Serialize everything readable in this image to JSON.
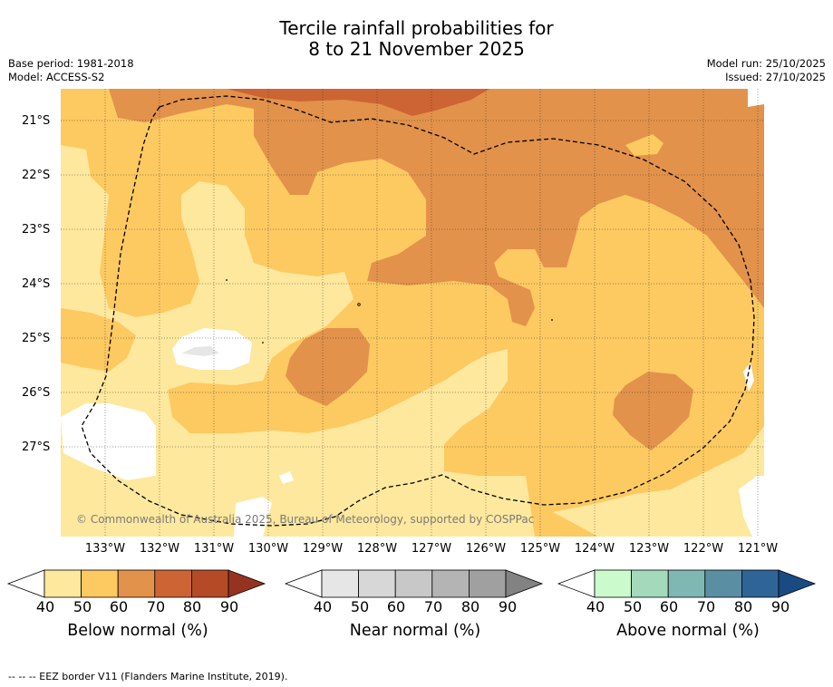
{
  "title": {
    "line1": "Tercile rainfall probabilities for",
    "line2": "8 to 21 November 2025"
  },
  "meta_left": {
    "base_period": "Base period: 1981-2018",
    "model": "Model: ACCESS-S2"
  },
  "meta_right": {
    "model_run": "Model run: 25/10/2025",
    "issued": "Issued: 27/10/2025"
  },
  "map": {
    "lat_labels": [
      "21°S",
      "22°S",
      "23°S",
      "24°S",
      "25°S",
      "26°S",
      "27°S"
    ],
    "lon_labels": [
      "133°W",
      "132°W",
      "131°W",
      "130°W",
      "129°W",
      "128°W",
      "127°W",
      "126°W",
      "125°W",
      "124°W",
      "123°W",
      "122°W",
      "121°W"
    ],
    "copyright": "© Commonwealth of Australia 2025, Bureau of Meteorology, supported by COSPPac",
    "dominant_category": "Below normal",
    "max_probability_range": "70-80"
  },
  "colorbars": [
    {
      "label": "Below normal (%)",
      "ticks": [
        "40",
        "50",
        "60",
        "70",
        "80",
        "90"
      ],
      "colors": [
        "#ffffff",
        "#fee89d",
        "#fdc961",
        "#e2924a",
        "#cd6433",
        "#b44a26",
        "#963320"
      ]
    },
    {
      "label": "Near normal (%)",
      "ticks": [
        "40",
        "50",
        "60",
        "70",
        "80",
        "90"
      ],
      "colors": [
        "#ffffff",
        "#e6e6e6",
        "#d7d7d7",
        "#c8c8c8",
        "#b4b4b4",
        "#a0a0a0",
        "#828282"
      ]
    },
    {
      "label": "Above normal (%)",
      "ticks": [
        "40",
        "50",
        "60",
        "70",
        "80",
        "90"
      ],
      "colors": [
        "#ffffff",
        "#cbfacc",
        "#a5d9bb",
        "#7fb7b2",
        "#5a8fa3",
        "#2f6496",
        "#1a4a82"
      ]
    }
  ],
  "footer": "--  --  -- EEZ border V11 (Flanders Marine Institute, 2019).",
  "colors": {
    "lt40": "#ffffff",
    "b40": "#fee89d",
    "b50": "#fdc961",
    "b60": "#e2924a",
    "b70": "#cd6433",
    "grey": "#e6e6e6"
  }
}
